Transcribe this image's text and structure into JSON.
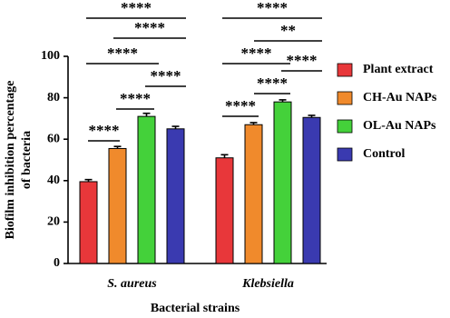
{
  "chart_data": {
    "type": "bar",
    "y_label": [
      "Biofilm inhibition percentage",
      "of bacteria"
    ],
    "x_label": "Bacterial strains",
    "categories": [
      "S. aureus",
      "Klebsiella"
    ],
    "series": [
      {
        "name": "Plant extract",
        "color": "#e8373a",
        "values": [
          39.5,
          51
        ],
        "errors": [
          1,
          1.5
        ]
      },
      {
        "name": "CH-Au NAPs",
        "color": "#f08a2c",
        "values": [
          55.5,
          67
        ],
        "errors": [
          1,
          1
        ]
      },
      {
        "name": "OL-Au NAPs",
        "color": "#44d13a",
        "values": [
          71,
          78
        ],
        "errors": [
          1.5,
          1
        ]
      },
      {
        "name": "Control",
        "color": "#3a3ab0",
        "values": [
          65,
          70.5
        ],
        "errors": [
          1.2,
          1
        ]
      }
    ],
    "ylim": [
      0,
      100
    ],
    "yticks": [
      0,
      20,
      40,
      60,
      80,
      100
    ],
    "annotations": [
      "****",
      "****",
      "****",
      "****",
      "****",
      "****",
      "****",
      "**",
      "****",
      "****",
      "****",
      "****"
    ]
  }
}
